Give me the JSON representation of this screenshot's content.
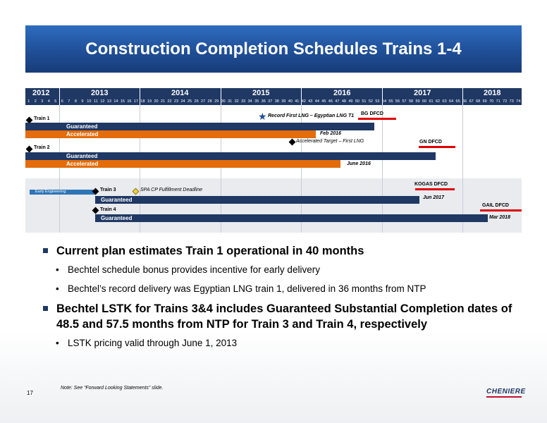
{
  "title": "Construction Completion Schedules Trains 1-4",
  "gantt": {
    "years": [
      "2012",
      "2013",
      "2014",
      "2015",
      "2016",
      "2017",
      "2018"
    ],
    "months": [
      "1",
      "2",
      "3",
      "4",
      "5",
      "6",
      "7",
      "8",
      "9",
      "10",
      "11",
      "12",
      "13",
      "14",
      "15",
      "16",
      "17",
      "18",
      "19",
      "20",
      "21",
      "22",
      "23",
      "24",
      "25",
      "26",
      "27",
      "28",
      "29",
      "30",
      "31",
      "32",
      "33",
      "34",
      "35",
      "36",
      "37",
      "38",
      "39",
      "40",
      "41",
      "42",
      "43",
      "44",
      "45",
      "46",
      "47",
      "48",
      "49",
      "50",
      "51",
      "52",
      "53",
      "54",
      "55",
      "56",
      "57",
      "58",
      "59",
      "60",
      "61",
      "62",
      "63",
      "64",
      "65",
      "66",
      "67",
      "68",
      "69",
      "70",
      "71",
      "72",
      "73",
      "74"
    ],
    "train1": "Train 1",
    "train2": "Train 2",
    "train3": "Train 3",
    "train4": "Train 4",
    "guaranteed": "Guaranteed",
    "accelerated": "Accelerated",
    "early_engineering": "Early Engineering",
    "record_label": "Record First LNG – Egyptian LNG T1",
    "bg_dfcd": "BG DFCD",
    "feb2016": "Feb 2016",
    "accel_target": "Accelerated Target – First LNG",
    "gn_dfcd": "GN DFCD",
    "june2016": "June 2016",
    "kogas_dfcd": "KOGAS DFCD",
    "spa_label": "SPA CP Fulfillment Deadline",
    "jun2017": "Jun 2017",
    "gail_dfcd": "GAIL DFCD",
    "mar2018": "Mar 2018"
  },
  "bullets": {
    "main1": "Current plan estimates Train 1 operational in 40 months",
    "sub1": "Bechtel schedule bonus provides incentive for early delivery",
    "sub2": "Bechtel’s record delivery was Egyptian LNG train 1, delivered in 36 months from NTP",
    "main2": "Bechtel LSTK for Trains 3&4 includes Guaranteed Substantial Completion dates of 48.5 and 57.5 months from NTP for Train 3 and Train 4, respectively",
    "sub3": "LSTK pricing valid through June 1, 2013"
  },
  "footer": {
    "page_number": "17",
    "note": "Note: See “Forward Looking Statements” slide.",
    "logo": "CHENIERE"
  },
  "colors": {
    "navy": "#1f3864",
    "orange": "#e46c0a",
    "title_blue": "#1f4f97",
    "red": "#e00000"
  }
}
